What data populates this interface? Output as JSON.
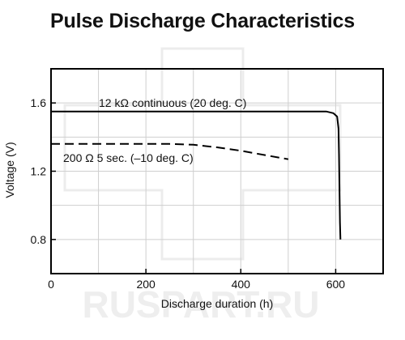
{
  "title": "Pulse Discharge Characteristics",
  "watermark": "RUSPART.RU",
  "chart_data": {
    "type": "line",
    "title": "Pulse Discharge Characteristics",
    "xlabel": "Discharge duration (h)",
    "ylabel": "Voltage (V)",
    "xlim": [
      0,
      700
    ],
    "ylim": [
      0.6,
      1.8
    ],
    "x_ticks": [
      0,
      200,
      400,
      600
    ],
    "y_ticks": [
      0.8,
      1.2,
      1.6
    ],
    "x_tick_labels": [
      "0",
      "200",
      "400",
      "600"
    ],
    "y_tick_labels": [
      "0.8",
      "1.2",
      "1.6"
    ],
    "grid": true,
    "legend": "none",
    "series": [
      {
        "name": "12 kΩ continuous (20 deg. C)",
        "style": "solid",
        "x": [
          0,
          100,
          200,
          300,
          400,
          500,
          580,
          595,
          603,
          606,
          607,
          608,
          609,
          610
        ],
        "y": [
          1.55,
          1.55,
          1.55,
          1.55,
          1.55,
          1.55,
          1.55,
          1.54,
          1.52,
          1.45,
          1.3,
          1.1,
          0.9,
          0.8
        ]
      },
      {
        "name": "200 Ω 5 sec. (–10 deg. C)",
        "style": "dashed",
        "x": [
          0,
          50,
          100,
          150,
          200,
          250,
          300,
          350,
          400,
          450,
          500
        ],
        "y": [
          1.36,
          1.36,
          1.36,
          1.36,
          1.36,
          1.36,
          1.355,
          1.34,
          1.32,
          1.295,
          1.27
        ]
      }
    ],
    "annotations": [
      {
        "text": "12 kΩ continuous (20 deg. C)",
        "series": 0
      },
      {
        "text": "200 Ω 5 sec. (–10 deg. C)",
        "series": 1
      }
    ],
    "colors": {
      "line": "#000000",
      "grid": "#cfcfcf",
      "frame": "#000000"
    }
  }
}
